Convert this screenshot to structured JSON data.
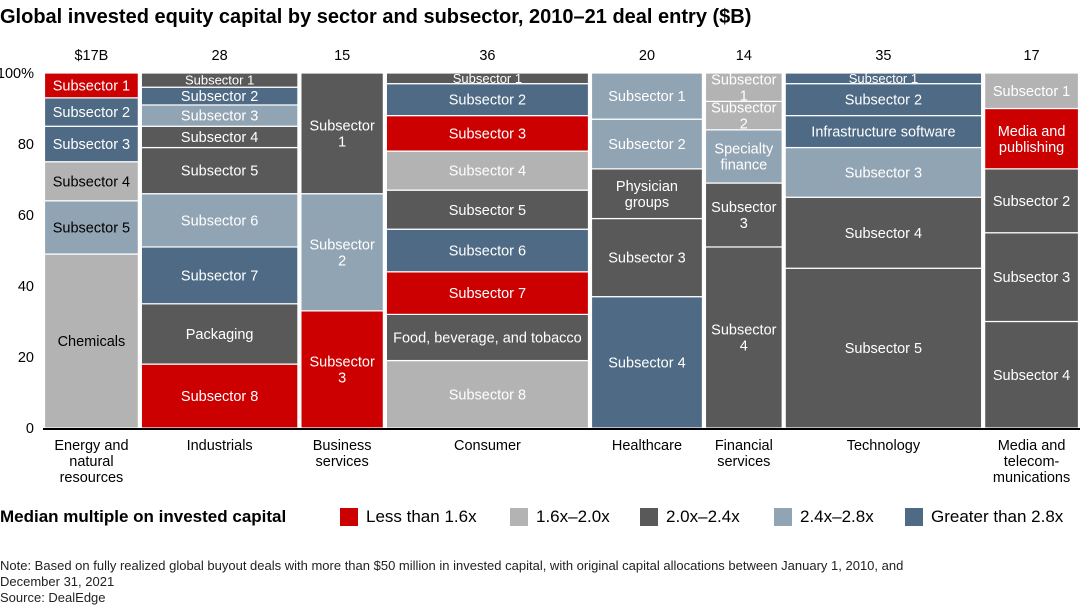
{
  "chart_data": {
    "type": "marimekko",
    "title": "Global invested equity capital by sector and subsector, 2010–21 deal entry ($B)",
    "ylim": [
      0,
      100
    ],
    "y_ticks": [
      "0",
      "20",
      "40",
      "60",
      "80",
      "100%"
    ],
    "grid": false,
    "legend": {
      "title": "Median multiple on invested capital",
      "placement": "bottom",
      "items": [
        {
          "key": "lt16",
          "label": "Less than 1.6x",
          "color": "#cc0000"
        },
        {
          "key": "16_20",
          "label": "1.6x–2.0x",
          "color": "#b3b3b3"
        },
        {
          "key": "20_24",
          "label": "2.0x–2.4x",
          "color": "#595959"
        },
        {
          "key": "24_28",
          "label": "2.4x–2.8x",
          "color": "#91a4b4"
        },
        {
          "key": "gt28",
          "label": "Greater than 2.8x",
          "color": "#4e6a85"
        }
      ]
    },
    "columns": [
      {
        "category": "Energy and\nnatural\nresources",
        "total": 17,
        "total_label": "$17B",
        "segments": [
          {
            "label": "Chemicals",
            "value": 49,
            "band": "16_20"
          },
          {
            "label": "Subsector 5",
            "value": 15,
            "band": "24_28"
          },
          {
            "label": "Subsector 4",
            "value": 11,
            "band": "16_20"
          },
          {
            "label": "Subsector 3",
            "value": 10,
            "band": "gt28"
          },
          {
            "label": "Subsector 2",
            "value": 8,
            "band": "gt28"
          },
          {
            "label": "Subsector 1",
            "value": 7,
            "band": "lt16"
          }
        ]
      },
      {
        "category": "Industrials",
        "total": 28,
        "total_label": "28",
        "segments": [
          {
            "label": "Subsector 8",
            "value": 18,
            "band": "lt16"
          },
          {
            "label": "Packaging",
            "value": 17,
            "band": "20_24"
          },
          {
            "label": "Subsector 7",
            "value": 16,
            "band": "gt28"
          },
          {
            "label": "Subsector 6",
            "value": 15,
            "band": "24_28"
          },
          {
            "label": "Subsector 5",
            "value": 13,
            "band": "20_24"
          },
          {
            "label": "Subsector 4",
            "value": 6,
            "band": "20_24"
          },
          {
            "label": "Subsector 3",
            "value": 6,
            "band": "24_28"
          },
          {
            "label": "Subsector 2",
            "value": 5,
            "band": "gt28"
          },
          {
            "label": "Subsector 1",
            "value": 4,
            "band": "20_24"
          }
        ]
      },
      {
        "category": "Business\nservices",
        "total": 15,
        "total_label": "15",
        "segments": [
          {
            "label": "Subsector\n3",
            "value": 33,
            "band": "lt16"
          },
          {
            "label": "Subsector\n2",
            "value": 33,
            "band": "24_28"
          },
          {
            "label": "Subsector\n1",
            "value": 34,
            "band": "20_24"
          }
        ]
      },
      {
        "category": "Consumer",
        "total": 36,
        "total_label": "36",
        "segments": [
          {
            "label": "Subsector 8",
            "value": 19,
            "band": "16_20"
          },
          {
            "label": "Food, beverage, and tobacco",
            "value": 13,
            "band": "20_24"
          },
          {
            "label": "Subsector 7",
            "value": 12,
            "band": "lt16"
          },
          {
            "label": "Subsector 6",
            "value": 12,
            "band": "gt28"
          },
          {
            "label": "Subsector 5",
            "value": 11,
            "band": "20_24"
          },
          {
            "label": "Subsector 4",
            "value": 11,
            "band": "16_20"
          },
          {
            "label": "Subsector 3",
            "value": 10,
            "band": "lt16"
          },
          {
            "label": "Subsector 2",
            "value": 9,
            "band": "gt28"
          },
          {
            "label": "Subsector 1",
            "value": 3,
            "band": "20_24"
          }
        ]
      },
      {
        "category": "Healthcare",
        "total": 20,
        "total_label": "20",
        "segments": [
          {
            "label": "Subsector 4",
            "value": 37,
            "band": "gt28"
          },
          {
            "label": "Subsector 3",
            "value": 22,
            "band": "20_24"
          },
          {
            "label": "Physician\ngroups",
            "value": 14,
            "band": "20_24"
          },
          {
            "label": "Subsector 2",
            "value": 14,
            "band": "24_28"
          },
          {
            "label": "Subsector 1",
            "value": 13,
            "band": "24_28"
          }
        ]
      },
      {
        "category": "Financial\nservices",
        "total": 14,
        "total_label": "14",
        "segments": [
          {
            "label": "Subsector\n4",
            "value": 51,
            "band": "20_24"
          },
          {
            "label": "Subsector\n3",
            "value": 18,
            "band": "20_24"
          },
          {
            "label": "Specialty\nfinance",
            "value": 15,
            "band": "24_28"
          },
          {
            "label": "Subsector\n2",
            "value": 8,
            "band": "16_20"
          },
          {
            "label": "Subsector\n1",
            "value": 8,
            "band": "16_20"
          }
        ]
      },
      {
        "category": "Technology",
        "total": 35,
        "total_label": "35",
        "segments": [
          {
            "label": "Subsector 5",
            "value": 45,
            "band": "20_24"
          },
          {
            "label": "Subsector 4",
            "value": 20,
            "band": "20_24"
          },
          {
            "label": "Subsector 3",
            "value": 14,
            "band": "24_28"
          },
          {
            "label": "Infrastructure software",
            "value": 9,
            "band": "gt28"
          },
          {
            "label": "Subsector 2",
            "value": 9,
            "band": "gt28"
          },
          {
            "label": "Subsector 1",
            "value": 3,
            "band": "gt28"
          }
        ]
      },
      {
        "category": "Media and\ntelecom-\nmunications",
        "total": 17,
        "total_label": "17",
        "segments": [
          {
            "label": "Subsector 4",
            "value": 30,
            "band": "20_24"
          },
          {
            "label": "Subsector 3",
            "value": 25,
            "band": "20_24"
          },
          {
            "label": "Subsector 2",
            "value": 18,
            "band": "20_24"
          },
          {
            "label": "Media and\npublishing",
            "value": 17,
            "band": "lt16"
          },
          {
            "label": "Subsector 1",
            "value": 10,
            "band": "16_20"
          }
        ]
      }
    ]
  },
  "notes": {
    "note_line1": "Note: Based on fully realized global buyout deals with more than $50 million in invested capital, with original capital allocations between January 1, 2010, and",
    "note_line2": "December 31, 2021",
    "source": "Source: DealEdge"
  }
}
